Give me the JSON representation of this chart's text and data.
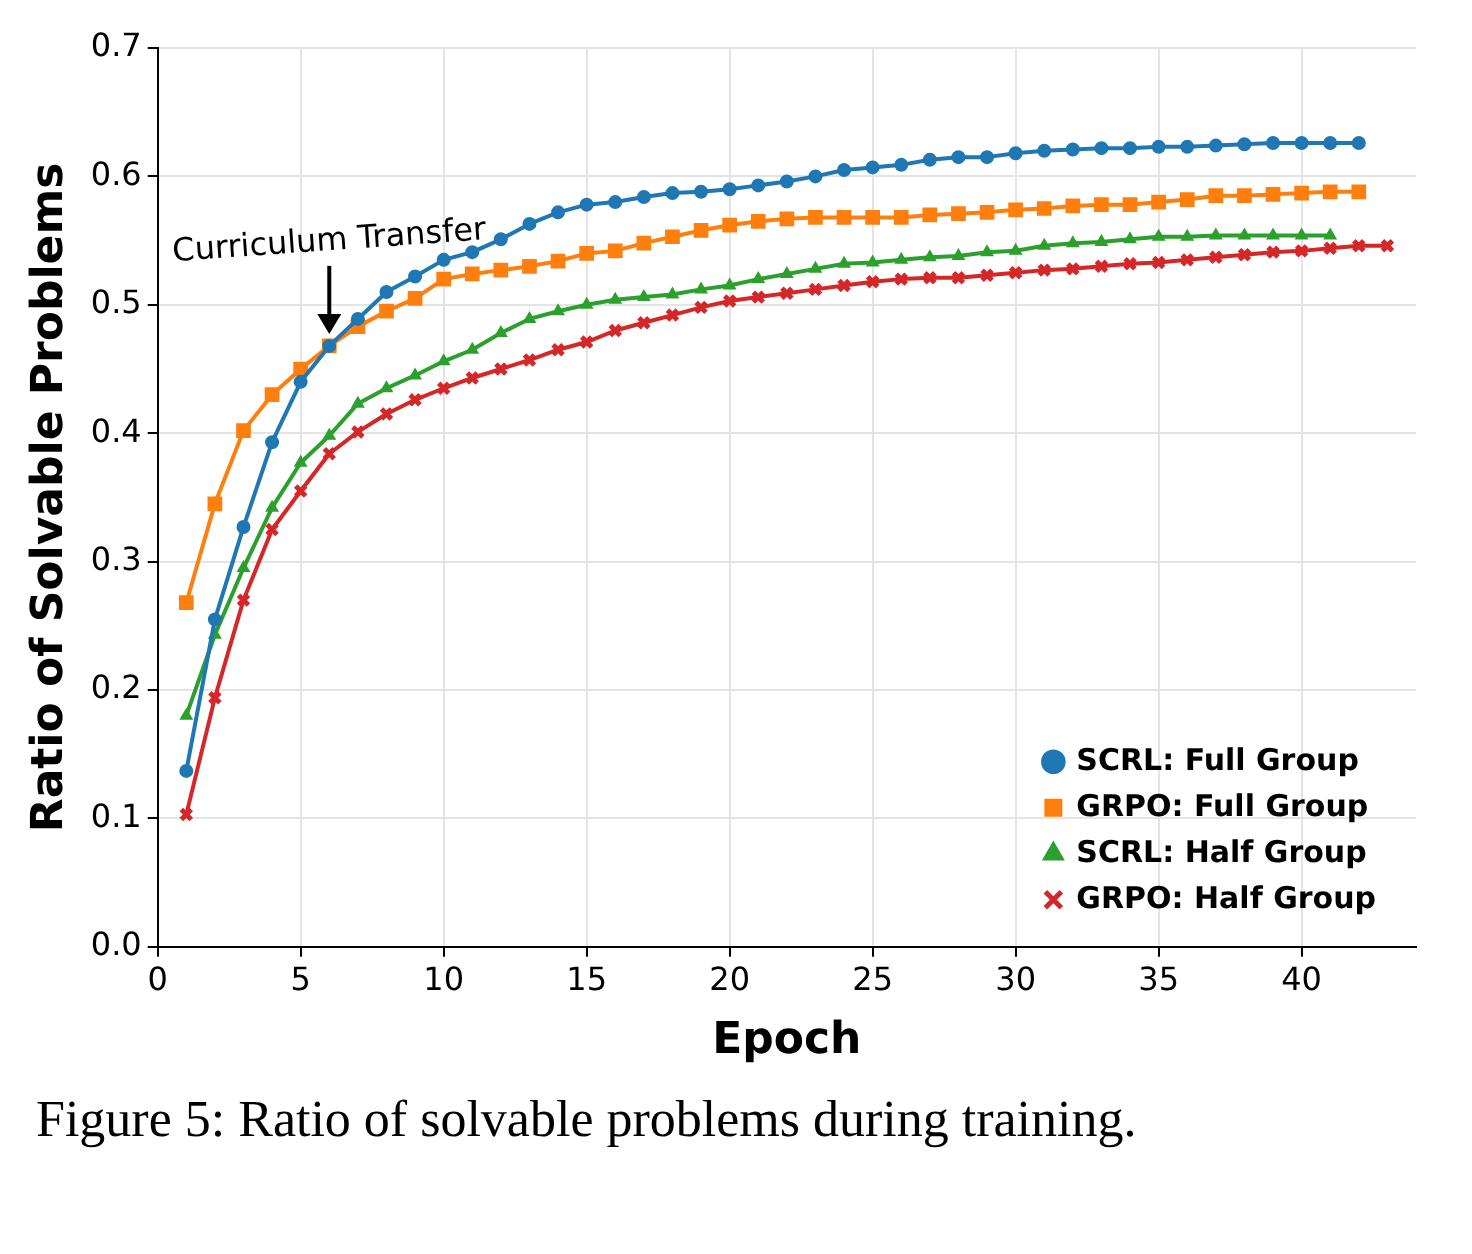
{
  "chart_data": {
    "type": "line",
    "xlabel": "Epoch",
    "ylabel": "Ratio of Solvable Problems",
    "xlim": [
      0,
      44
    ],
    "xticks": [
      0,
      5,
      10,
      15,
      20,
      25,
      30,
      35,
      40
    ],
    "ylim": [
      0,
      0.7
    ],
    "yticks": [
      {
        "value": 0,
        "label": "0.0"
      },
      0.1,
      0.2,
      0.3,
      0.4,
      0.5,
      0.6,
      0.7
    ],
    "grid": true,
    "legend": "bottom right",
    "line_style": "solid",
    "series": [
      {
        "name": "SCRL: Full Group",
        "color": "#1f77b4",
        "marker": "circle",
        "x": [
          1,
          2,
          3,
          4,
          5,
          6,
          7,
          8,
          9,
          10,
          11,
          12,
          13,
          14,
          15,
          16,
          17,
          18,
          19,
          20,
          21,
          22,
          23,
          24,
          25,
          26,
          27,
          28,
          29,
          30,
          31,
          32,
          33,
          34,
          35,
          36,
          37,
          38,
          39,
          40,
          41,
          42
        ],
        "values": [
          0.137,
          0.255,
          0.327,
          0.393,
          0.44,
          0.468,
          0.489,
          0.51,
          0.522,
          0.535,
          0.541,
          0.551,
          0.563,
          0.572,
          0.578,
          0.58,
          0.584,
          0.587,
          0.588,
          0.59,
          0.593,
          0.596,
          0.6,
          0.605,
          0.607,
          0.609,
          0.613,
          0.615,
          0.615,
          0.618,
          0.62,
          0.621,
          0.622,
          0.622,
          0.623,
          0.623,
          0.624,
          0.625,
          0.626,
          0.626,
          0.626,
          0.626
        ]
      },
      {
        "name": "GRPO: Full Group",
        "color": "#ff7f0e",
        "marker": "square",
        "x": [
          1,
          2,
          3,
          4,
          5,
          6,
          7,
          8,
          9,
          10,
          11,
          12,
          13,
          14,
          15,
          16,
          17,
          18,
          19,
          20,
          21,
          22,
          23,
          24,
          25,
          26,
          27,
          28,
          29,
          30,
          31,
          32,
          33,
          34,
          35,
          36,
          37,
          38,
          39,
          40,
          41,
          42
        ],
        "values": [
          0.268,
          0.345,
          0.402,
          0.43,
          0.45,
          0.468,
          0.483,
          0.495,
          0.505,
          0.52,
          0.524,
          0.527,
          0.53,
          0.534,
          0.54,
          0.542,
          0.548,
          0.553,
          0.558,
          0.562,
          0.565,
          0.567,
          0.568,
          0.568,
          0.568,
          0.568,
          0.57,
          0.571,
          0.572,
          0.574,
          0.575,
          0.577,
          0.578,
          0.578,
          0.58,
          0.582,
          0.585,
          0.585,
          0.586,
          0.587,
          0.588,
          0.588
        ]
      },
      {
        "name": "SCRL: Half Group",
        "color": "#2ca02c",
        "marker": "triangle",
        "x": [
          1,
          2,
          3,
          4,
          5,
          6,
          7,
          8,
          9,
          10,
          11,
          12,
          13,
          14,
          15,
          16,
          17,
          18,
          19,
          20,
          21,
          22,
          23,
          24,
          25,
          26,
          27,
          28,
          29,
          30,
          31,
          32,
          33,
          34,
          35,
          36,
          37,
          38,
          39,
          40,
          41
        ],
        "values": [
          0.18,
          0.243,
          0.295,
          0.342,
          0.377,
          0.398,
          0.423,
          0.435,
          0.445,
          0.456,
          0.465,
          0.478,
          0.489,
          0.495,
          0.5,
          0.504,
          0.506,
          0.508,
          0.512,
          0.515,
          0.52,
          0.524,
          0.528,
          0.532,
          0.533,
          0.535,
          0.537,
          0.538,
          0.541,
          0.542,
          0.546,
          0.548,
          0.549,
          0.551,
          0.553,
          0.553,
          0.554,
          0.554,
          0.554,
          0.554,
          0.554
        ]
      },
      {
        "name": "GRPO: Half Group",
        "color": "#d62728",
        "marker": "cross",
        "x": [
          1,
          2,
          3,
          4,
          5,
          6,
          7,
          8,
          9,
          10,
          11,
          12,
          13,
          14,
          15,
          16,
          17,
          18,
          19,
          20,
          21,
          22,
          23,
          24,
          25,
          26,
          27,
          28,
          29,
          30,
          31,
          32,
          33,
          34,
          35,
          36,
          37,
          38,
          39,
          40,
          41,
          42,
          43
        ],
        "values": [
          0.103,
          0.194,
          0.27,
          0.325,
          0.355,
          0.384,
          0.401,
          0.415,
          0.426,
          0.435,
          0.443,
          0.45,
          0.457,
          0.465,
          0.471,
          0.48,
          0.486,
          0.492,
          0.498,
          0.503,
          0.506,
          0.509,
          0.512,
          0.515,
          0.518,
          0.52,
          0.521,
          0.521,
          0.523,
          0.525,
          0.527,
          0.528,
          0.53,
          0.532,
          0.533,
          0.535,
          0.537,
          0.539,
          0.541,
          0.542,
          0.544,
          0.546,
          0.546
        ]
      }
    ],
    "annotations": [
      {
        "text": "Curriculum Transfer",
        "x": 6,
        "y": 0.468
      },
      "Figure 5: Ratio of solvable problems during training."
    ]
  }
}
